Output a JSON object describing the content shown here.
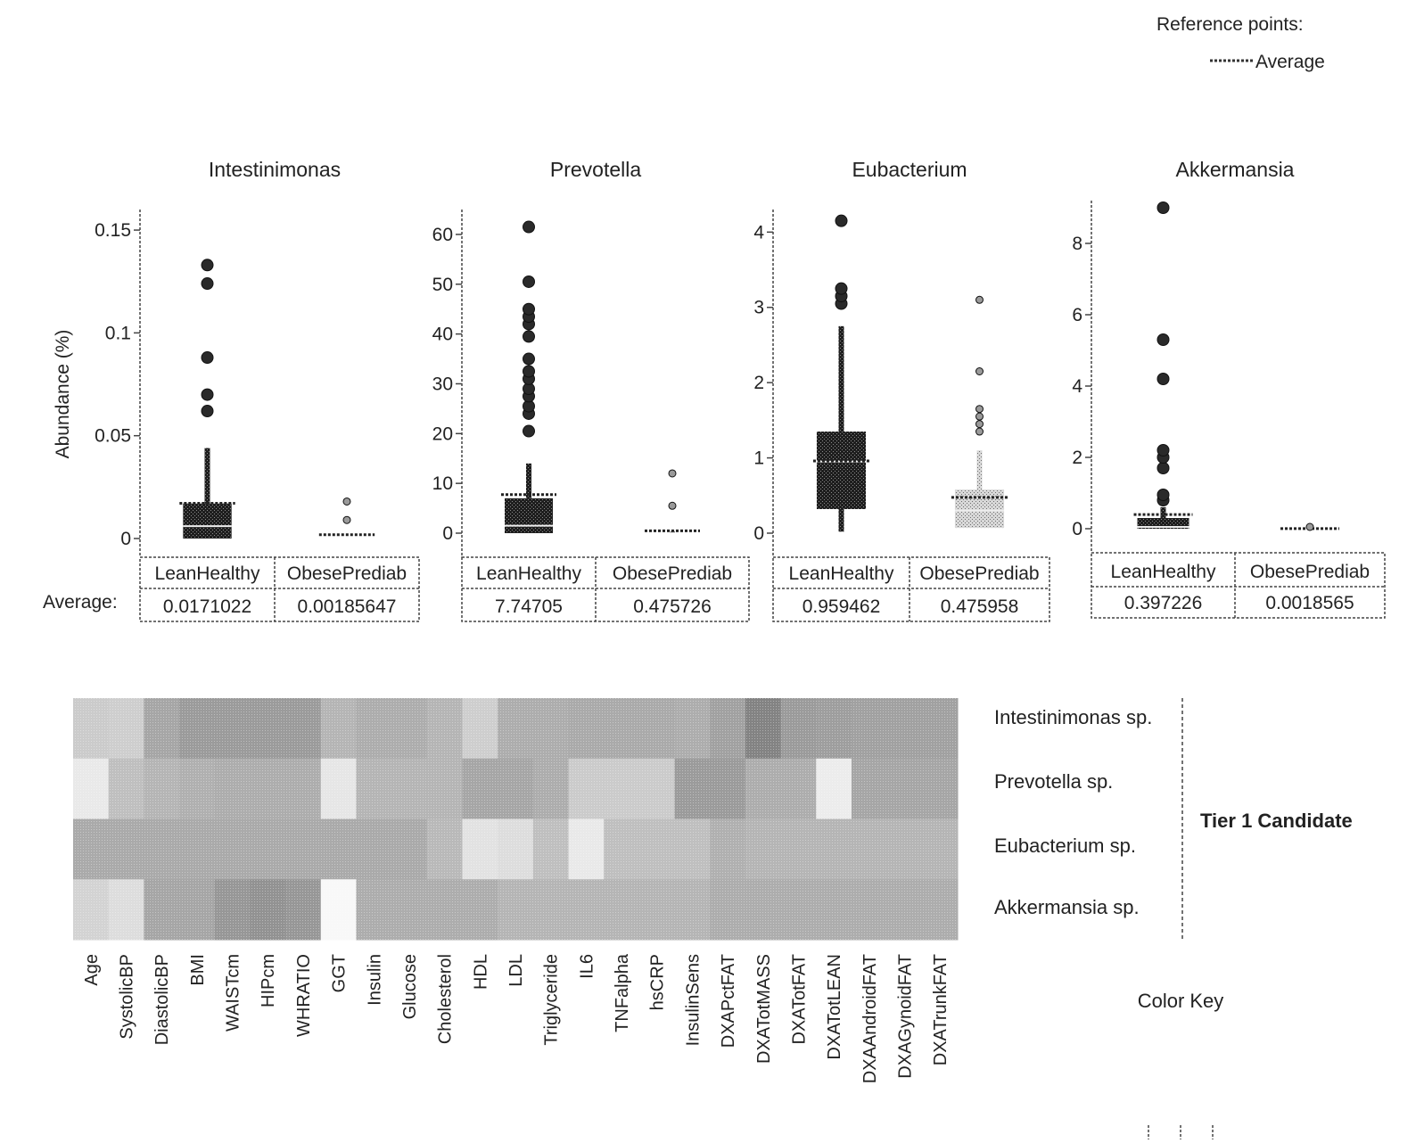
{
  "reference": {
    "title": "Reference points:",
    "average_label": "Average"
  },
  "y_axis_label": "Abundance (%)",
  "average_row_label": "Average:",
  "chart_data": [
    {
      "type": "box",
      "title": "Intestinimonas",
      "ylabel": "Abundance (%)",
      "ylim": [
        0,
        0.16
      ],
      "ticks": [
        0,
        0.05,
        0.1,
        0.15
      ],
      "tick_labels": [
        "0",
        "0.05",
        "0.1",
        "0.15"
      ],
      "groups": [
        {
          "name": "LeanHealthy",
          "average_text": "0.0171022",
          "average": 0.0171022,
          "q1": 0.0,
          "median": 0.006,
          "q3": 0.017,
          "whisker_low": 0.0,
          "whisker_high": 0.044,
          "outliers": [
            0.062,
            0.07,
            0.088,
            0.124,
            0.133
          ],
          "shade": "dark"
        },
        {
          "name": "ObesePrediab",
          "average_text": "0.00185647",
          "average": 0.00185647,
          "q1": 0.0,
          "median": 0.0,
          "q3": 0.0,
          "whisker_low": 0.0,
          "whisker_high": 0.0,
          "outliers": [
            0.009,
            0.018
          ],
          "shade": "light"
        }
      ]
    },
    {
      "type": "box",
      "title": "Prevotella",
      "ylim": [
        0,
        65
      ],
      "ticks": [
        0,
        10,
        20,
        30,
        40,
        50,
        60
      ],
      "tick_labels": [
        "0",
        "10",
        "20",
        "30",
        "40",
        "50",
        "60"
      ],
      "groups": [
        {
          "name": "LeanHealthy",
          "average_text": "7.74705",
          "average": 7.74705,
          "q1": 0.0,
          "median": 1.5,
          "q3": 7.0,
          "whisker_low": 0.0,
          "whisker_high": 14.0,
          "outliers": [
            20.5,
            24.0,
            25.5,
            27.5,
            29.0,
            31.0,
            32.5,
            35.0,
            39.5,
            42.0,
            43.5,
            45.0,
            50.5,
            61.5
          ],
          "shade": "dark"
        },
        {
          "name": "ObesePrediab",
          "average_text": "0.475726",
          "average": 0.475726,
          "q1": 0.0,
          "median": 0.0,
          "q3": 0.0,
          "whisker_low": 0.0,
          "whisker_high": 0.5,
          "outliers": [
            5.5,
            12.0
          ],
          "shade": "light"
        }
      ]
    },
    {
      "type": "box",
      "title": "Eubacterium",
      "ylim": [
        0,
        4.3
      ],
      "ticks": [
        0,
        1,
        2,
        3,
        4
      ],
      "tick_labels": [
        "0",
        "1",
        "2",
        "3",
        "4"
      ],
      "groups": [
        {
          "name": "LeanHealthy",
          "average_text": "0.959462",
          "average": 0.959462,
          "q1": 0.32,
          "median": 0.95,
          "q3": 1.35,
          "whisker_low": 0.02,
          "whisker_high": 2.75,
          "outliers": [
            3.05,
            3.15,
            3.25,
            4.15
          ],
          "shade": "dark"
        },
        {
          "name": "ObesePrediab",
          "average_text": "0.475958",
          "average": 0.475958,
          "q1": 0.07,
          "median": 0.3,
          "q3": 0.58,
          "whisker_low": 0.07,
          "whisker_high": 1.1,
          "outliers": [
            1.35,
            1.45,
            1.55,
            1.65,
            2.15,
            3.1
          ],
          "shade": "light"
        }
      ]
    },
    {
      "type": "box",
      "title": "Akkermansia",
      "ylim": [
        0,
        9.2
      ],
      "ticks": [
        0,
        2,
        4,
        6,
        8
      ],
      "tick_labels": [
        "0",
        "2",
        "4",
        "6",
        "8"
      ],
      "groups": [
        {
          "name": "LeanHealthy",
          "average_text": "0.397226",
          "average": 0.397226,
          "q1": 0.0,
          "median": 0.05,
          "q3": 0.3,
          "whisker_low": 0.0,
          "whisker_high": 0.6,
          "outliers": [
            0.8,
            0.95,
            1.7,
            2.0,
            2.2,
            4.2,
            5.3,
            9.0
          ],
          "shade": "dark"
        },
        {
          "name": "ObesePrediab",
          "average_text": "0.0018565",
          "average": 0.0018565,
          "q1": 0.0,
          "median": 0.0,
          "q3": 0.0,
          "whisker_low": 0.0,
          "whisker_high": 0.0,
          "outliers": [
            0.05
          ],
          "shade": "light"
        }
      ]
    },
    {
      "type": "heatmap",
      "columns": [
        "Age",
        "SystolicBP",
        "DiastolicBP",
        "BMI",
        "WAISTcm",
        "HIPcm",
        "WHRATIO",
        "GGT",
        "Insulin",
        "Glucose",
        "Cholesterol",
        "HDL",
        "LDL",
        "Triglyceride",
        "IL6",
        "TNFalpha",
        "hsCRP",
        "InsulinSens",
        "DXAPctFAT",
        "DXATotMASS",
        "DXATotFAT",
        "DXATotLEAN",
        "DXAAndroidFAT",
        "DXAGynoidFAT",
        "DXATrunkFAT"
      ],
      "rows": [
        "Intestinimonas sp.",
        "Prevotella sp.",
        "Eubacterium sp.",
        "Akkermansia sp."
      ],
      "values": [
        [
          0.3,
          0.28,
          0.55,
          0.62,
          0.62,
          0.62,
          0.62,
          0.45,
          0.5,
          0.5,
          0.45,
          0.28,
          0.5,
          0.5,
          0.52,
          0.52,
          0.52,
          0.5,
          0.58,
          0.78,
          0.62,
          0.6,
          0.58,
          0.58,
          0.58
        ],
        [
          0.1,
          0.38,
          0.45,
          0.48,
          0.5,
          0.5,
          0.5,
          0.12,
          0.45,
          0.45,
          0.45,
          0.55,
          0.55,
          0.5,
          0.3,
          0.3,
          0.3,
          0.62,
          0.62,
          0.5,
          0.5,
          0.08,
          0.55,
          0.55,
          0.55
        ],
        [
          0.52,
          0.52,
          0.52,
          0.52,
          0.52,
          0.52,
          0.52,
          0.52,
          0.52,
          0.52,
          0.42,
          0.15,
          0.18,
          0.38,
          0.1,
          0.38,
          0.38,
          0.38,
          0.48,
          0.45,
          0.45,
          0.45,
          0.45,
          0.45,
          0.45
        ],
        [
          0.25,
          0.18,
          0.55,
          0.55,
          0.65,
          0.68,
          0.65,
          0.0,
          0.5,
          0.5,
          0.5,
          0.5,
          0.45,
          0.45,
          0.45,
          0.45,
          0.45,
          0.45,
          0.5,
          0.5,
          0.5,
          0.5,
          0.5,
          0.5,
          0.5
        ]
      ],
      "group_label": "Tier 1 Candidate",
      "color_key_label": "Color Key"
    }
  ]
}
